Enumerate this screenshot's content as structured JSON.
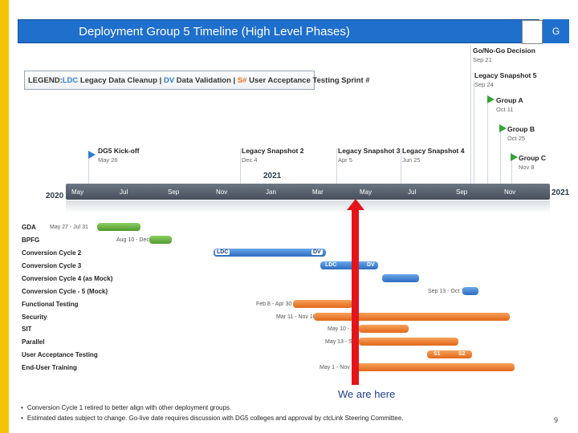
{
  "header": {
    "title": "Deployment Group 5 Timeline (High Level Phases)",
    "badge": "G"
  },
  "legend": {
    "prefix": "LEGEND: ",
    "ldc_abbr": "LDC",
    "ldc_text": " Legacy Data Cleanup | ",
    "dv_abbr": "DV",
    "dv_text": " Data Validation | ",
    "s_abbr": "S#",
    "s_text": " User Acceptance Testing Sprint #"
  },
  "milestones": [
    {
      "name": "Go/No-Go Decision",
      "date": "Sep 21"
    },
    {
      "name": "Legacy Snapshot 5",
      "date": "Sep 24"
    },
    {
      "name": "Group A",
      "date": "Oct 11"
    },
    {
      "name": "Group B",
      "date": "Oct 25"
    },
    {
      "name": "Group C",
      "date": "Nov 8"
    },
    {
      "name": "DG5 Kick-off",
      "date": "May 26"
    },
    {
      "name": "Legacy Snapshot 2",
      "date": "Dec 4"
    },
    {
      "name": "Legacy Snapshot 3",
      "date": "Apr 5"
    },
    {
      "name": "Legacy Snapshot 4",
      "date": "Jun 25"
    }
  ],
  "timeline": {
    "year_start": "2020",
    "year_mid": "2021",
    "year_end": "2021",
    "months": [
      "May",
      "Jul",
      "Sep",
      "Nov",
      "Jan",
      "Mar",
      "May",
      "Jul",
      "Sep",
      "Nov"
    ]
  },
  "rows": [
    {
      "label": "GDA",
      "range": "May 27 - Jul 31"
    },
    {
      "label": "BPFG",
      "range": "Aug 10 - Dec 3"
    },
    {
      "label": "Conversion Cycle 2",
      "tag1": "LDC",
      "tag2": "DV"
    },
    {
      "label": "Conversion Cycle 3",
      "tag1": "LDC",
      "tag2": "DV"
    },
    {
      "label": "Conversion Cycle 4 (as Mock)"
    },
    {
      "label": "Conversion Cycle - 5 (Mock)",
      "range": "Sep 13 - Oct 1"
    },
    {
      "label": "Functional Testing",
      "range": "Feb 8 - Apr 30"
    },
    {
      "label": "Security",
      "range": "Mar 11 - Nov 10"
    },
    {
      "label": "SIT",
      "range": "May 10 - J"
    },
    {
      "label": "Parallel",
      "range": "May 13 - Se"
    },
    {
      "label": "User Acceptance Testing",
      "tag1": "S1",
      "tag2": "S2"
    },
    {
      "label": "End-User Training",
      "range": "May 1 - Nov 1"
    }
  ],
  "callout": "We are here",
  "notes": [
    "Conversion Cycle 1 retired to better align with other deployment groups.",
    "Estimated dates subject to change. Go-live date requires discussion with DG5 colleges and approval by ctcLink Steering Committee."
  ],
  "bullet": "•",
  "page_number": "9",
  "colors": {
    "title_blue": "#1f6fcc",
    "accent_yellow": "#f5c400",
    "green_bar": "#5ba935",
    "blue_bar": "#2f7fd6",
    "orange_bar": "#e8731f",
    "arrow_red": "#e3141a"
  }
}
